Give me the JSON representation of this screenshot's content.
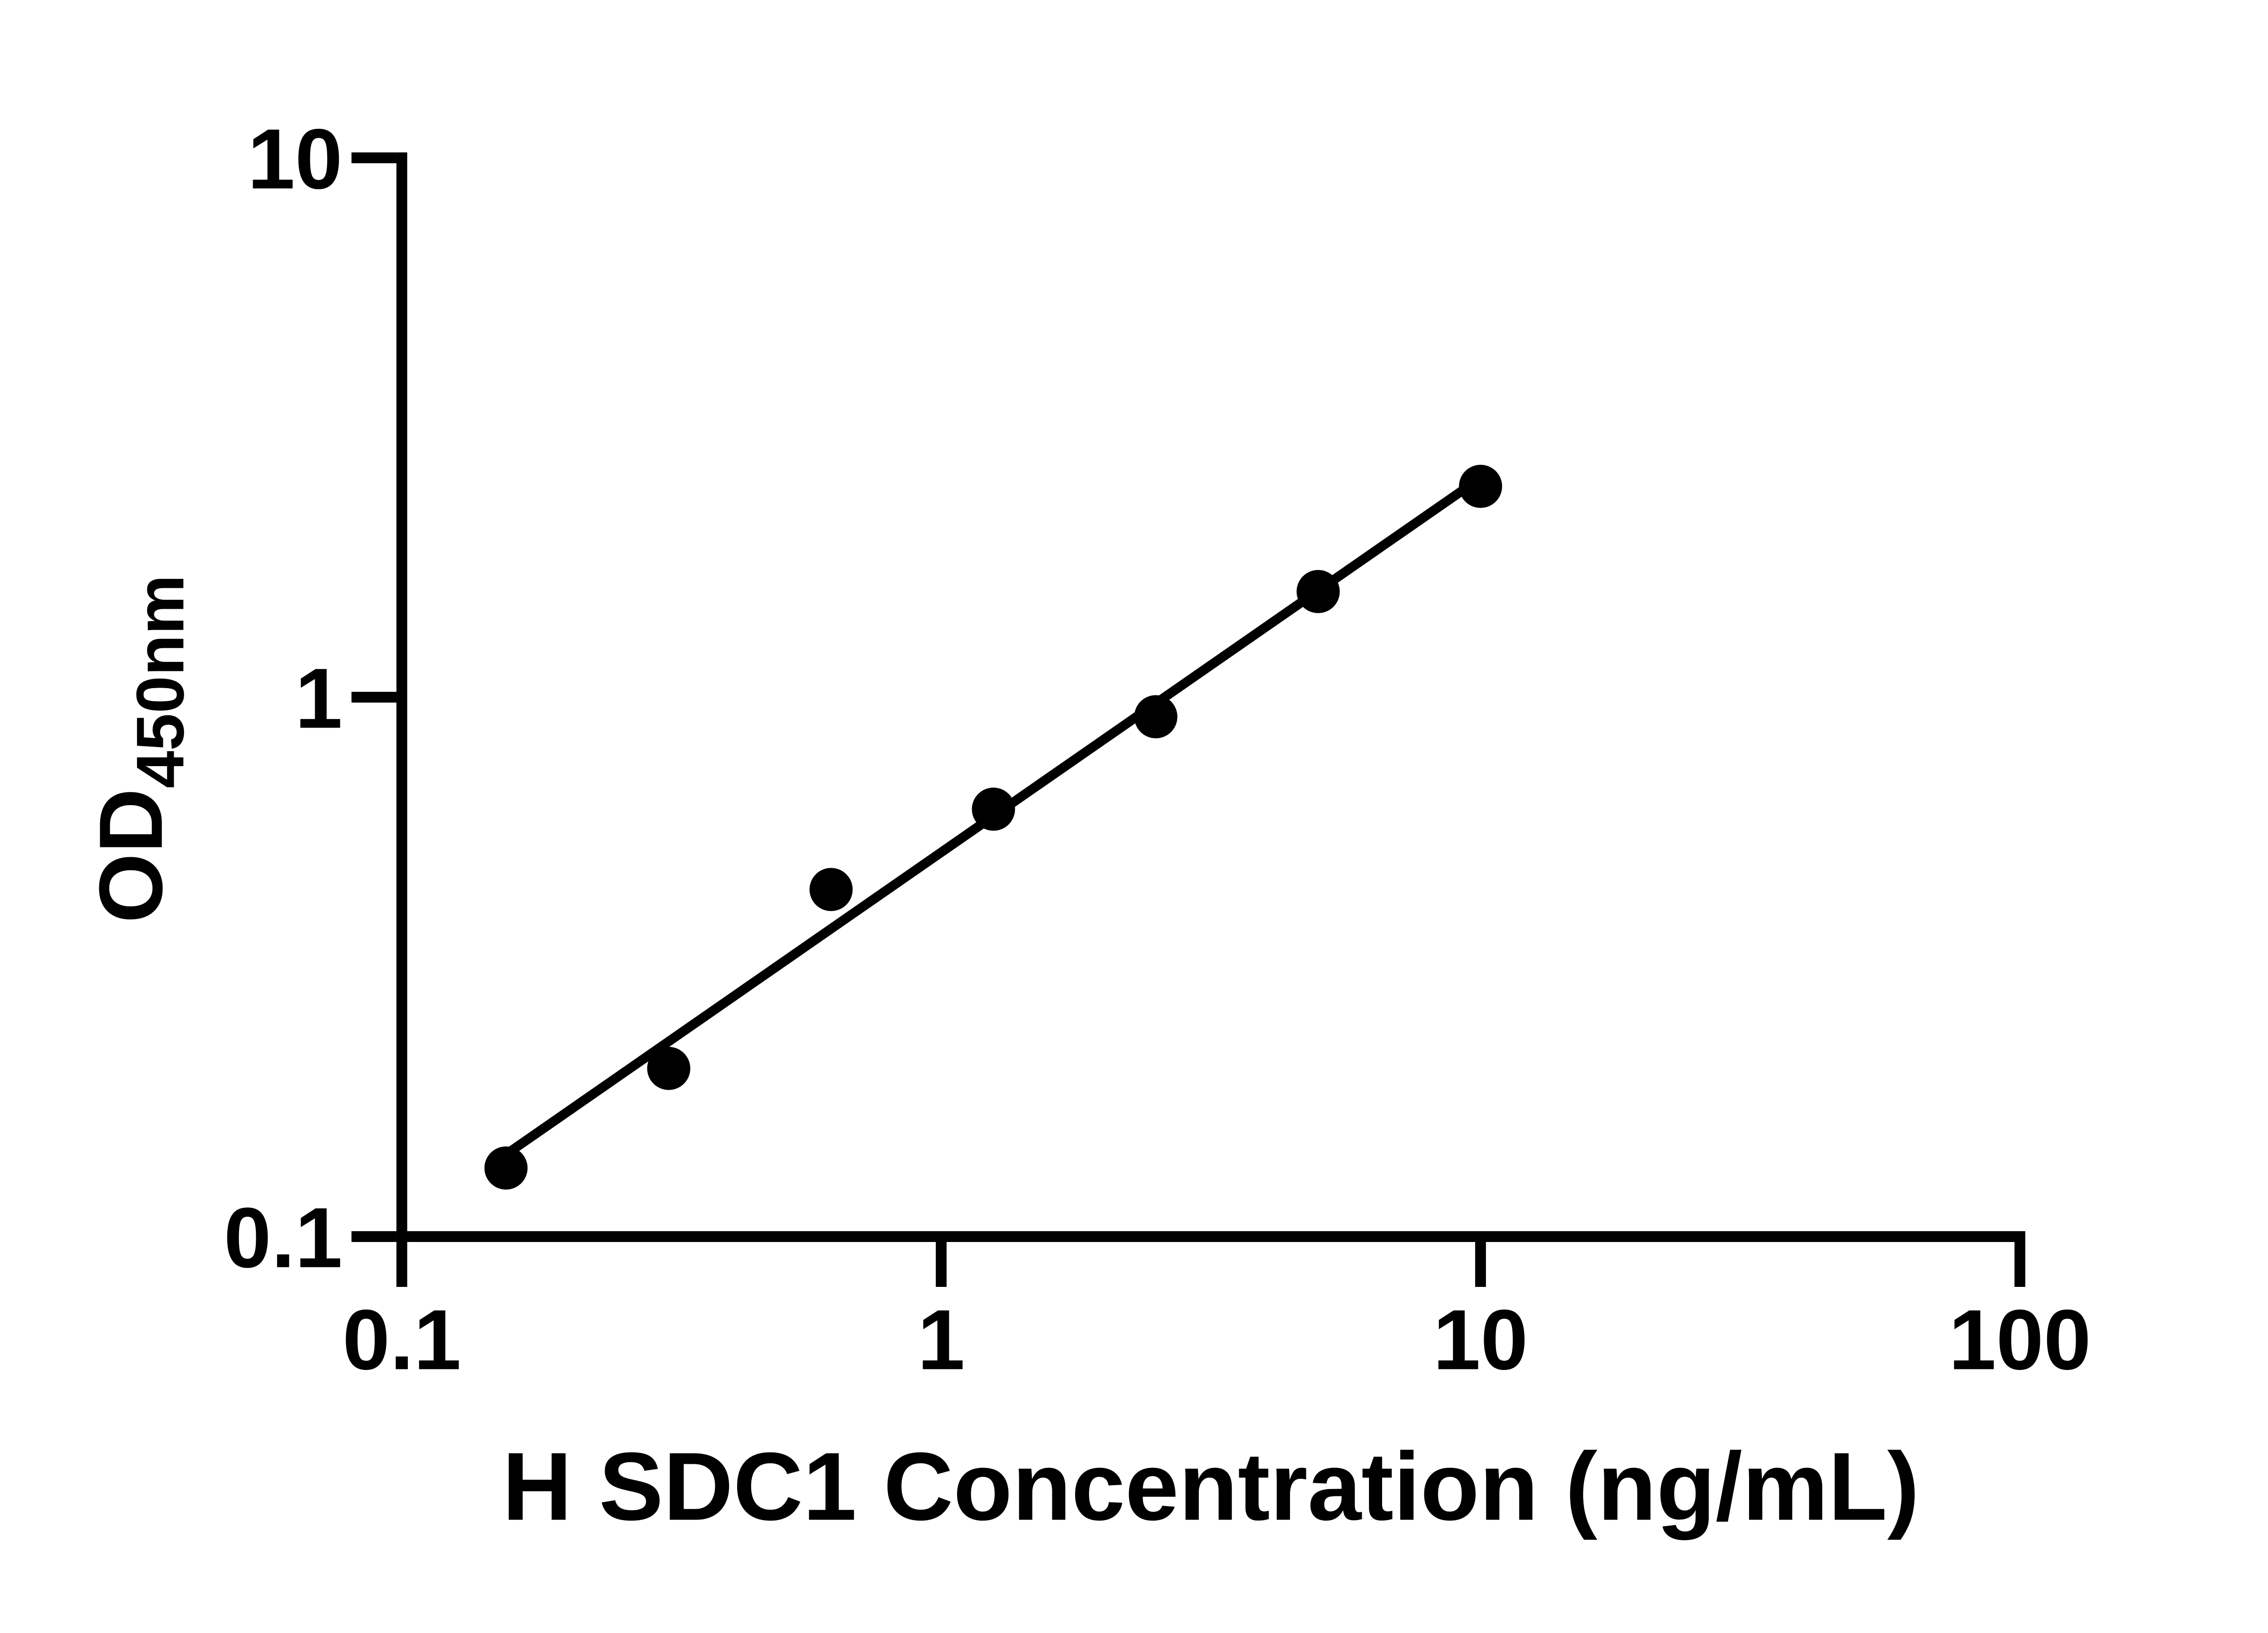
{
  "page": {
    "background": "#ffffff"
  },
  "chart_data": {
    "type": "scatter",
    "title": "",
    "xlabel": "H SDC1 Concentration (ng/mL)",
    "ylabel_main": "OD",
    "ylabel_sub": "450nm",
    "x_scale": "log",
    "y_scale": "log",
    "xlim": [
      0.1,
      100
    ],
    "ylim": [
      0.1,
      10
    ],
    "grid": false,
    "legend": "none",
    "axis_color": "#000000",
    "marker_color": "#000000",
    "trendline_color": "#000000",
    "x_ticks": [
      {
        "value": 0.1,
        "label": "0.1"
      },
      {
        "value": 1,
        "label": "1"
      },
      {
        "value": 10,
        "label": "10"
      },
      {
        "value": 100,
        "label": "100"
      }
    ],
    "y_ticks": [
      {
        "value": 0.1,
        "label": "0.1"
      },
      {
        "value": 1,
        "label": "1"
      },
      {
        "value": 10,
        "label": "10"
      }
    ],
    "points": [
      {
        "x": 0.156,
        "y": 0.134
      },
      {
        "x": 0.3125,
        "y": 0.205
      },
      {
        "x": 0.625,
        "y": 0.44
      },
      {
        "x": 1.25,
        "y": 0.62
      },
      {
        "x": 2.5,
        "y": 0.92
      },
      {
        "x": 5,
        "y": 1.57
      },
      {
        "x": 10,
        "y": 2.46
      }
    ],
    "trendline": {
      "x1": 0.156,
      "y1": 0.142,
      "x2": 10,
      "y2": 2.55
    }
  }
}
